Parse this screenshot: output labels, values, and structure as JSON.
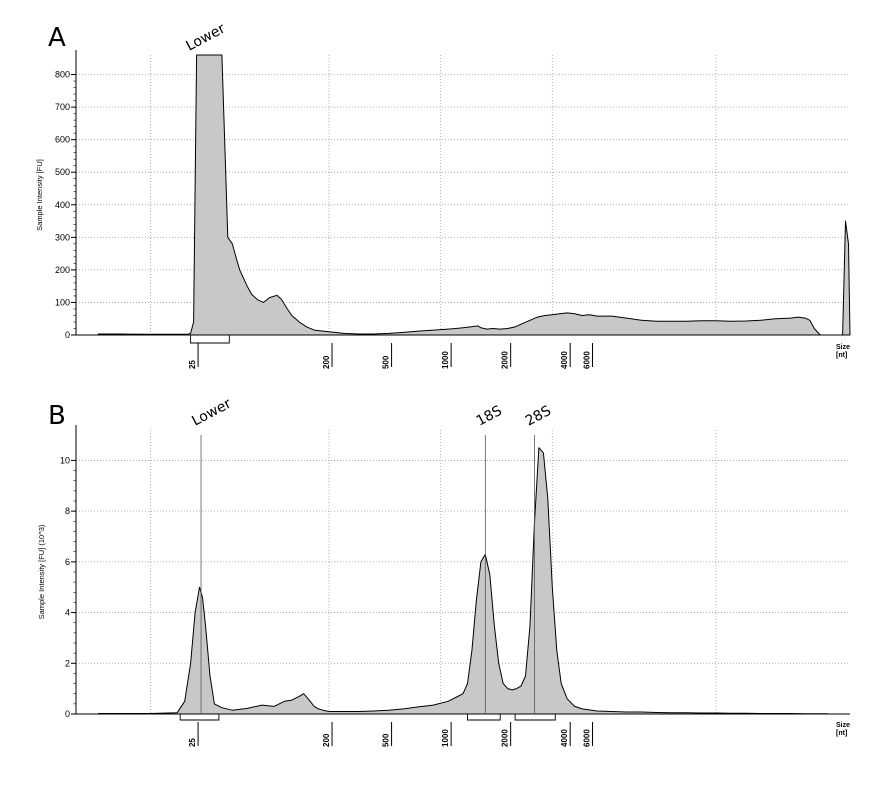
{
  "chart_data": [
    {
      "type": "area",
      "panel_label": "A",
      "ylabel": "Sample Intensity [FU]",
      "yticks": [
        0,
        100,
        200,
        300,
        400,
        500,
        600,
        700,
        800
      ],
      "ylim": [
        0,
        860
      ],
      "size_label": [
        "Size",
        "[nt]"
      ],
      "grid": true,
      "x_unit": "seconds",
      "xlim": [
        17,
        69
      ],
      "size_ticks": [
        {
          "label": "25",
          "x": 25
        },
        {
          "label": "200",
          "x": 34
        },
        {
          "label": "500",
          "x": 38
        },
        {
          "label": "1000",
          "x": 42
        },
        {
          "label": "2000",
          "x": 46
        },
        {
          "label": "4000",
          "x": 50
        },
        {
          "label": "6000",
          "x": 51.5
        }
      ],
      "peaks": [
        {
          "label": "Lower",
          "x": 25,
          "bracket": [
            24.7,
            27.3
          ],
          "line": false
        }
      ],
      "series": [
        {
          "x": [
            18.5,
            20,
            22,
            23.5,
            24.5,
            24.7,
            24.9,
            25.1,
            26,
            26.8,
            27.2,
            27.5,
            27.8,
            28,
            28.2,
            28.5,
            28.8,
            29.2,
            29.6,
            30,
            30.5,
            30.8,
            31.2,
            31.5,
            32,
            32.5,
            33,
            34,
            35,
            36,
            37,
            38,
            39,
            40,
            41,
            42,
            42.5,
            43,
            43.5,
            44,
            44.2,
            44.6,
            45,
            45.5,
            46,
            46.5,
            47,
            47.5,
            48,
            48.5,
            49,
            49.5,
            50,
            50.5,
            51,
            51.5,
            52,
            53,
            54,
            55,
            56,
            57,
            58,
            59,
            60,
            61,
            62,
            63,
            64,
            65,
            65.5,
            66,
            66.3,
            66.6,
            67,
            68.5,
            68.7,
            68.9,
            69
          ],
          "y": [
            3,
            3,
            2,
            2,
            2,
            5,
            40,
            860,
            860,
            860,
            300,
            280,
            230,
            200,
            180,
            150,
            125,
            108,
            100,
            115,
            122,
            110,
            80,
            60,
            40,
            25,
            15,
            10,
            5,
            3,
            3,
            5,
            8,
            12,
            15,
            18,
            20,
            22,
            25,
            28,
            22,
            18,
            20,
            18,
            20,
            25,
            35,
            45,
            55,
            60,
            62,
            65,
            68,
            65,
            60,
            62,
            58,
            58,
            52,
            45,
            42,
            42,
            42,
            44,
            44,
            42,
            43,
            45,
            50,
            52,
            55,
            52,
            45,
            20,
            0,
            0,
            350,
            280,
            0
          ]
        }
      ]
    },
    {
      "type": "area",
      "panel_label": "B",
      "ylabel": "Sample Intensity [FU] (10^3)",
      "yticks": [
        0,
        2,
        4,
        6,
        8,
        10
      ],
      "ylim": [
        0,
        11.2
      ],
      "size_label": [
        "Size",
        "[nt]"
      ],
      "grid": true,
      "x_unit": "seconds",
      "xlim": [
        17,
        69
      ],
      "size_ticks": [
        {
          "label": "25",
          "x": 25
        },
        {
          "label": "200",
          "x": 34
        },
        {
          "label": "500",
          "x": 38
        },
        {
          "label": "1000",
          "x": 42
        },
        {
          "label": "2000",
          "x": 46
        },
        {
          "label": "4000",
          "x": 50
        },
        {
          "label": "6000",
          "x": 51.5
        }
      ],
      "peaks": [
        {
          "label": "Lower",
          "x": 25.4,
          "bracket": [
            24,
            26.6
          ],
          "line": true
        },
        {
          "label": "18S",
          "x": 44.5,
          "bracket": [
            43.3,
            45.5
          ],
          "line": true
        },
        {
          "label": "28S",
          "x": 47.8,
          "bracket": [
            46.5,
            49.2
          ],
          "line": true
        }
      ],
      "series": [
        {
          "x": [
            18.5,
            20,
            22,
            23.8,
            24.3,
            24.7,
            25,
            25.3,
            25.5,
            25.7,
            26,
            26.3,
            26.8,
            27.5,
            28.5,
            29.5,
            30.3,
            31,
            31.5,
            32,
            32.3,
            32.6,
            33,
            33.3,
            33.6,
            34,
            35,
            36,
            37,
            38,
            39,
            40,
            41,
            42,
            42.5,
            43,
            43.3,
            43.6,
            43.9,
            44.2,
            44.5,
            44.8,
            45.1,
            45.4,
            45.7,
            46,
            46.3,
            46.6,
            46.9,
            47.2,
            47.5,
            47.8,
            48.1,
            48.4,
            48.7,
            49,
            49.3,
            49.6,
            50,
            50.5,
            51,
            52,
            53,
            54,
            55,
            56,
            57,
            58,
            59,
            60,
            61,
            62,
            63,
            64,
            65,
            66,
            67,
            67.5
          ],
          "y": [
            0.02,
            0.02,
            0.02,
            0.05,
            0.5,
            2.0,
            4.0,
            5.0,
            4.6,
            3.5,
            1.5,
            0.4,
            0.25,
            0.15,
            0.22,
            0.35,
            0.3,
            0.5,
            0.55,
            0.7,
            0.8,
            0.6,
            0.3,
            0.2,
            0.15,
            0.1,
            0.1,
            0.1,
            0.12,
            0.15,
            0.2,
            0.28,
            0.35,
            0.5,
            0.65,
            0.8,
            1.2,
            2.5,
            4.5,
            6.0,
            6.3,
            5.5,
            3.5,
            2.0,
            1.2,
            1.0,
            0.95,
            1.0,
            1.1,
            1.5,
            3.5,
            7.5,
            10.5,
            10.3,
            8.5,
            5.0,
            2.5,
            1.2,
            0.6,
            0.3,
            0.2,
            0.12,
            0.1,
            0.08,
            0.08,
            0.06,
            0.05,
            0.05,
            0.04,
            0.04,
            0.03,
            0.03,
            0.02,
            0.02,
            0.02,
            0.01,
            0.01,
            0.01
          ]
        }
      ]
    }
  ]
}
